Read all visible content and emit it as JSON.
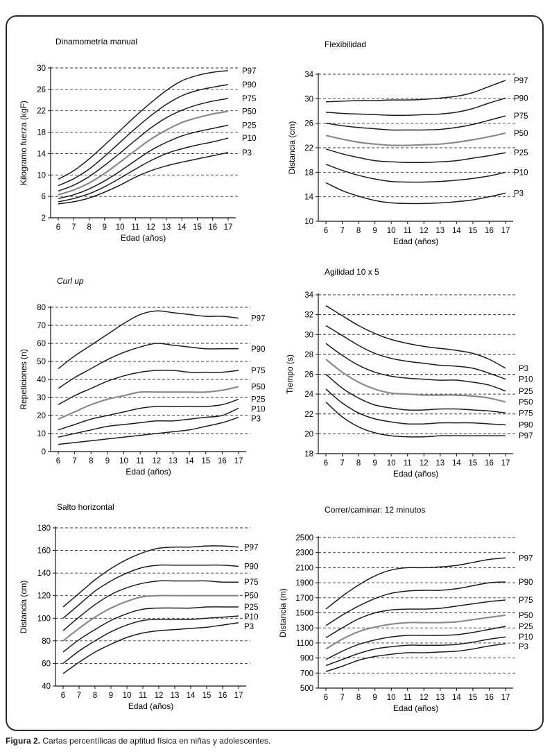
{
  "caption": {
    "label": "Figura 2.",
    "text": " Cartas percentílicas de aptitud física en niñas y adolescentes."
  },
  "colors": {
    "line": "#1c1c1c",
    "p50": "#8a8a8a",
    "grid": "#333333"
  },
  "chart_data": [
    {
      "type": "line",
      "title": "Dinamometría manual",
      "title_italic": false,
      "xlabel": "Edad (años)",
      "ylabel": "Kilogramo fuerza (kgF)",
      "x": [
        6,
        7,
        8,
        9,
        10,
        11,
        12,
        13,
        14,
        15,
        16,
        17
      ],
      "ylim": [
        2,
        30
      ],
      "yticks": [
        2,
        6,
        10,
        14,
        18,
        22,
        26,
        30
      ],
      "grid": "horizontal dashed",
      "series": [
        {
          "name": "P97",
          "values": [
            9.2,
            10.8,
            13.0,
            15.6,
            18.3,
            21.0,
            23.5,
            25.8,
            27.6,
            28.6,
            29.2,
            29.5
          ]
        },
        {
          "name": "P90",
          "values": [
            8.0,
            9.3,
            11.1,
            13.5,
            16.1,
            18.7,
            21.1,
            23.2,
            24.8,
            25.8,
            26.4,
            26.9
          ]
        },
        {
          "name": "P75",
          "values": [
            7.0,
            8.1,
            9.7,
            11.8,
            14.1,
            16.5,
            18.8,
            20.7,
            22.1,
            23.1,
            23.8,
            24.3
          ]
        },
        {
          "name": "P50",
          "values": [
            6.3,
            7.2,
            8.5,
            10.3,
            12.4,
            14.6,
            16.7,
            18.4,
            19.8,
            20.7,
            21.4,
            21.9
          ]
        },
        {
          "name": "P25",
          "values": [
            5.6,
            6.3,
            7.4,
            8.9,
            10.7,
            12.7,
            14.6,
            16.1,
            17.3,
            18.1,
            18.7,
            19.3
          ]
        },
        {
          "name": "P10",
          "values": [
            5.0,
            5.6,
            6.5,
            7.8,
            9.4,
            11.1,
            12.7,
            14.0,
            14.9,
            15.6,
            16.2,
            16.9
          ]
        },
        {
          "name": "P3",
          "values": [
            4.6,
            5.0,
            5.7,
            6.8,
            8.1,
            9.6,
            10.8,
            11.7,
            12.4,
            13.0,
            13.6,
            14.2
          ]
        }
      ]
    },
    {
      "type": "line",
      "title": "Flexibilidad",
      "title_italic": false,
      "xlabel": "Edad (años)",
      "ylabel": "Distancia (cm)",
      "x": [
        6,
        7,
        8,
        9,
        10,
        11,
        12,
        13,
        14,
        15,
        16,
        17
      ],
      "ylim": [
        10,
        34
      ],
      "yticks": [
        10,
        14,
        18,
        22,
        26,
        30,
        34
      ],
      "grid": "horizontal dashed",
      "series": [
        {
          "name": "P97",
          "values": [
            29.5,
            29.6,
            29.7,
            29.7,
            29.8,
            29.8,
            29.9,
            30.1,
            30.4,
            31.0,
            32.0,
            33.0
          ]
        },
        {
          "name": "P90",
          "values": [
            27.8,
            27.6,
            27.5,
            27.4,
            27.3,
            27.3,
            27.4,
            27.5,
            27.8,
            28.4,
            29.3,
            30.1
          ]
        },
        {
          "name": "P75",
          "values": [
            26.0,
            25.6,
            25.3,
            25.1,
            24.9,
            24.9,
            24.9,
            25.0,
            25.3,
            25.8,
            26.5,
            27.2
          ]
        },
        {
          "name": "P50",
          "values": [
            24.0,
            23.4,
            22.9,
            22.6,
            22.4,
            22.4,
            22.5,
            22.6,
            22.9,
            23.3,
            23.8,
            24.4
          ]
        },
        {
          "name": "P25",
          "values": [
            21.8,
            21.0,
            20.4,
            19.9,
            19.7,
            19.6,
            19.6,
            19.7,
            19.9,
            20.3,
            20.7,
            21.2
          ]
        },
        {
          "name": "P10",
          "values": [
            19.3,
            18.3,
            17.5,
            16.9,
            16.5,
            16.4,
            16.4,
            16.5,
            16.7,
            17.0,
            17.4,
            18.0
          ]
        },
        {
          "name": "P3",
          "values": [
            16.3,
            15.0,
            14.1,
            13.4,
            13.0,
            12.9,
            12.9,
            13.0,
            13.2,
            13.5,
            14.0,
            14.6
          ]
        }
      ]
    },
    {
      "type": "line",
      "title": "Curl up",
      "title_italic": true,
      "xlabel": "Edad (años)",
      "ylabel": "Repeticiones (n)",
      "x": [
        6,
        7,
        8,
        9,
        10,
        11,
        12,
        13,
        14,
        15,
        16,
        17
      ],
      "ylim": [
        0,
        80
      ],
      "yticks": [
        0,
        10,
        20,
        30,
        40,
        50,
        60,
        70,
        80
      ],
      "grid": "horizontal dashed",
      "series": [
        {
          "name": "P97",
          "values": [
            46,
            53,
            59,
            65,
            71,
            76,
            78,
            77,
            76,
            75,
            75,
            74
          ]
        },
        {
          "name": "P90",
          "values": [
            35,
            41,
            46,
            51,
            55,
            58,
            60,
            59,
            58,
            57,
            57,
            57
          ]
        },
        {
          "name": "P75",
          "values": [
            26,
            31,
            35,
            39,
            42,
            44,
            45,
            45,
            44,
            44,
            44,
            45
          ]
        },
        {
          "name": "P50",
          "values": [
            18,
            22,
            26,
            29,
            31,
            33,
            33,
            33,
            33,
            33,
            34,
            36
          ]
        },
        {
          "name": "P25",
          "values": [
            12,
            15,
            18,
            20,
            22,
            24,
            25,
            25,
            25,
            25,
            26,
            29
          ]
        },
        {
          "name": "P10",
          "values": [
            8,
            10,
            12,
            14,
            15,
            16,
            17,
            17,
            18,
            19,
            20,
            24
          ]
        },
        {
          "name": "P3",
          "values": [
            4,
            5,
            6,
            7,
            8,
            9,
            10,
            11,
            12,
            14,
            16,
            19
          ]
        }
      ]
    },
    {
      "type": "line",
      "title": "Agilidad 10 x 5",
      "title_italic": false,
      "xlabel": "Edad (años)",
      "ylabel": "Tiempo (s)",
      "x": [
        6,
        7,
        8,
        9,
        10,
        11,
        12,
        13,
        14,
        15,
        16,
        17
      ],
      "ylim": [
        18,
        34
      ],
      "yticks": [
        18,
        20,
        22,
        24,
        26,
        28,
        30,
        32,
        34
      ],
      "grid": "horizontal dashed",
      "series": [
        {
          "name": "P3",
          "values": [
            32.9,
            31.9,
            30.9,
            30.1,
            29.5,
            29.1,
            28.8,
            28.6,
            28.4,
            28.1,
            27.5,
            26.6
          ]
        },
        {
          "name": "P10",
          "values": [
            30.9,
            29.9,
            28.9,
            28.1,
            27.6,
            27.3,
            27.1,
            26.9,
            26.8,
            26.6,
            26.1,
            25.5
          ]
        },
        {
          "name": "P25",
          "values": [
            29.1,
            27.9,
            26.9,
            26.2,
            25.8,
            25.6,
            25.5,
            25.4,
            25.4,
            25.2,
            24.9,
            24.3
          ]
        },
        {
          "name": "P50",
          "values": [
            27.5,
            26.2,
            25.2,
            24.5,
            24.1,
            24.0,
            23.9,
            23.9,
            23.9,
            23.8,
            23.6,
            23.2
          ]
        },
        {
          "name": "P75",
          "values": [
            26.0,
            24.6,
            23.6,
            22.9,
            22.6,
            22.4,
            22.4,
            22.5,
            22.5,
            22.4,
            22.3,
            22.1
          ]
        },
        {
          "name": "P90",
          "values": [
            24.5,
            23.1,
            22.1,
            21.5,
            21.2,
            21.0,
            21.0,
            21.1,
            21.1,
            21.1,
            21.0,
            20.9
          ]
        },
        {
          "name": "P97",
          "values": [
            23.2,
            21.7,
            20.7,
            20.1,
            19.8,
            19.7,
            19.7,
            19.8,
            19.8,
            19.8,
            19.8,
            19.8
          ]
        }
      ]
    },
    {
      "type": "line",
      "title": "Salto horizontal",
      "title_italic": false,
      "xlabel": "Edad (años)",
      "ylabel": "Distancia (cm)",
      "x": [
        6,
        7,
        8,
        9,
        10,
        11,
        12,
        13,
        14,
        15,
        16,
        17
      ],
      "ylim": [
        40,
        180
      ],
      "yticks": [
        40,
        60,
        80,
        100,
        120,
        140,
        160,
        180
      ],
      "grid": "horizontal dashed",
      "series": [
        {
          "name": "P97",
          "values": [
            110,
            122,
            134,
            144,
            152,
            158,
            162,
            163,
            163,
            164,
            164,
            163
          ]
        },
        {
          "name": "P90",
          "values": [
            100,
            112,
            124,
            133,
            140,
            145,
            147,
            147,
            147,
            147,
            147,
            146
          ]
        },
        {
          "name": "P75",
          "values": [
            89,
            101,
            112,
            121,
            127,
            131,
            133,
            133,
            133,
            133,
            132,
            132
          ]
        },
        {
          "name": "P50",
          "values": [
            80,
            91,
            101,
            109,
            115,
            119,
            120,
            120,
            120,
            120,
            120,
            120
          ]
        },
        {
          "name": "P25",
          "values": [
            70,
            81,
            90,
            98,
            104,
            108,
            109,
            109,
            109,
            110,
            110,
            110
          ]
        },
        {
          "name": "P10",
          "values": [
            60,
            71,
            80,
            88,
            94,
            98,
            99,
            99,
            99,
            100,
            101,
            102
          ]
        },
        {
          "name": "P3",
          "values": [
            51,
            61,
            70,
            77,
            83,
            87,
            89,
            90,
            91,
            92,
            94,
            96
          ]
        }
      ]
    },
    {
      "type": "line",
      "title": "Correr/caminar: 12 minutos",
      "title_italic": false,
      "xlabel": "Edad (años)",
      "ylabel": "Distancia (m)",
      "x": [
        6,
        7,
        8,
        9,
        10,
        11,
        12,
        13,
        14,
        15,
        16,
        17
      ],
      "ylim": [
        500,
        2500
      ],
      "yticks": [
        500,
        700,
        900,
        1100,
        1300,
        1500,
        1700,
        1900,
        2100,
        2300,
        2500
      ],
      "grid": "horizontal dashed",
      "series": [
        {
          "name": "P97",
          "values": [
            1550,
            1720,
            1870,
            1990,
            2070,
            2100,
            2100,
            2110,
            2130,
            2170,
            2210,
            2230
          ]
        },
        {
          "name": "P90",
          "values": [
            1330,
            1470,
            1590,
            1690,
            1760,
            1790,
            1800,
            1800,
            1820,
            1860,
            1900,
            1910
          ]
        },
        {
          "name": "P75",
          "values": [
            1170,
            1300,
            1420,
            1500,
            1540,
            1550,
            1550,
            1560,
            1590,
            1620,
            1650,
            1670
          ]
        },
        {
          "name": "P50",
          "values": [
            1020,
            1150,
            1250,
            1310,
            1350,
            1370,
            1370,
            1370,
            1380,
            1410,
            1440,
            1470
          ]
        },
        {
          "name": "P25",
          "values": [
            880,
            990,
            1080,
            1140,
            1180,
            1200,
            1200,
            1200,
            1210,
            1240,
            1280,
            1320
          ]
        },
        {
          "name": "P10",
          "values": [
            800,
            880,
            960,
            1020,
            1050,
            1070,
            1070,
            1070,
            1080,
            1110,
            1150,
            1180
          ]
        },
        {
          "name": "P3",
          "values": [
            720,
            790,
            870,
            920,
            950,
            970,
            970,
            980,
            990,
            1020,
            1060,
            1090
          ]
        }
      ]
    }
  ]
}
